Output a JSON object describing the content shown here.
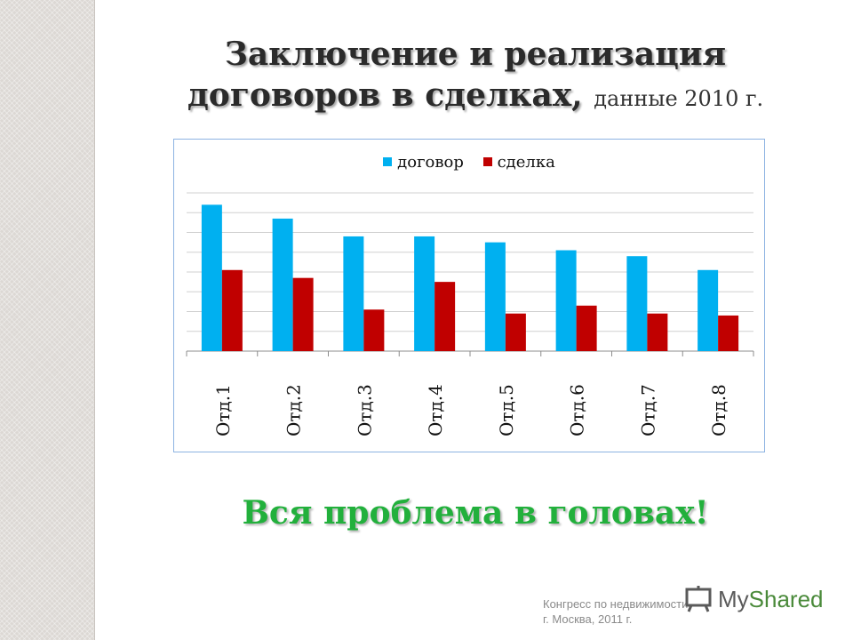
{
  "title": {
    "line1": "Заключение и реализация",
    "line2": "договоров в сделках,",
    "subtitle": "данные 2010 г."
  },
  "chart_data": {
    "type": "bar",
    "categories": [
      "Отд.1",
      "Отд.2",
      "Отд.3",
      "Отд.4",
      "Отд.5",
      "Отд.6",
      "Отд.7",
      "Отд.8"
    ],
    "series": [
      {
        "name": "договор",
        "color": "#00b0f0",
        "values": [
          7.4,
          6.7,
          5.8,
          5.8,
          5.5,
          5.1,
          4.8,
          4.1
        ]
      },
      {
        "name": "сделка",
        "color": "#c00000",
        "values": [
          4.1,
          3.7,
          2.1,
          3.5,
          1.9,
          2.3,
          1.9,
          1.8
        ]
      }
    ],
    "ylim": [
      0,
      8
    ],
    "grid": true,
    "legend": "top"
  },
  "tagline": "Вся проблема в головах!",
  "footer": {
    "line1": "Конгресс по недвижимости,",
    "line2": "г. Москва, 2011 г."
  },
  "watermark": {
    "text_my": "My",
    "text_shared": "Shared",
    "icon": "presentation-board-icon"
  }
}
